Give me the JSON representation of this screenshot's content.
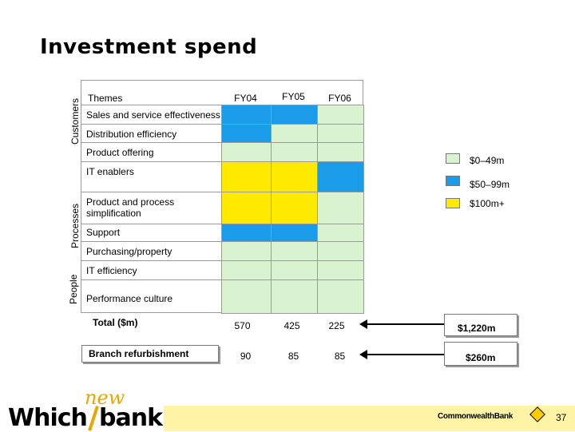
{
  "title": "Investment spend",
  "groups": {
    "customers": "Customers",
    "processes": "Processes",
    "people": "People"
  },
  "header": {
    "themes": "Themes",
    "fy04": "FY04",
    "fy05": "FY05",
    "fy06": "FY06"
  },
  "rows": [
    {
      "label": "Sales and service effectiveness",
      "levels": [
        "blue",
        "blue",
        "green"
      ]
    },
    {
      "label": "Distribution efficiency",
      "levels": [
        "blue",
        "green",
        "green"
      ]
    },
    {
      "label": "Product offering",
      "levels": [
        "green",
        "green",
        "green"
      ]
    },
    {
      "label": "IT enablers",
      "levels": [
        "yellow",
        "yellow",
        "blue"
      ]
    },
    {
      "label": "Product and process simplification",
      "levels": [
        "yellow",
        "yellow",
        "green"
      ]
    },
    {
      "label": "Support",
      "levels": [
        "blue",
        "blue",
        "green"
      ]
    },
    {
      "label": "Purchasing/property",
      "levels": [
        "green",
        "green",
        "green"
      ]
    },
    {
      "label": "IT efficiency",
      "levels": [
        "green",
        "green",
        "green"
      ]
    },
    {
      "label": "Performance culture",
      "levels": [
        "green",
        "green",
        "green"
      ]
    }
  ],
  "legend": [
    {
      "label": "$0–49m",
      "color": "#d9f2cf"
    },
    {
      "label": "$50–99m",
      "color": "#1a9ce8"
    },
    {
      "label": "$100m+",
      "color": "#ffea00"
    }
  ],
  "total": {
    "label": "Total ($m)",
    "fy04": "570",
    "fy05": "425",
    "fy06": "225",
    "sum": "$1,220m"
  },
  "branch": {
    "label": "Branch refurbishment",
    "fy04": "90",
    "fy05": "85",
    "fy06": "85",
    "sum": "$260m"
  },
  "footer": {
    "logo_main": "Which",
    "logo_new": "new",
    "logo_bank": "bank",
    "company": "CommonwealthBank",
    "page_number": "37",
    "bar_color": "#fff3a6"
  },
  "colors": {
    "green": "#d9f2cf",
    "blue": "#1a9ce8",
    "yellow": "#ffea00"
  }
}
